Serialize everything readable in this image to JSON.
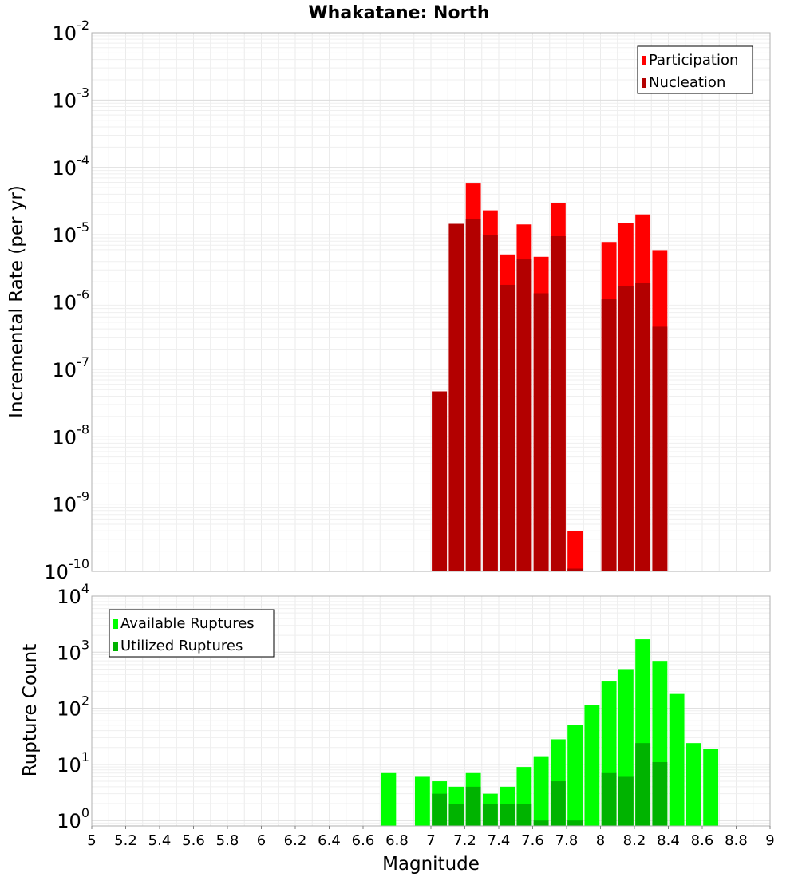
{
  "chart_data": [
    {
      "type": "bar",
      "title": "Whakatane: North",
      "xlabel": "",
      "ylabel": "Incremental Rate (per yr)",
      "yscale": "log",
      "ylim": [
        1e-10,
        0.01
      ],
      "xlim": [
        5,
        9
      ],
      "bin_width": 0.1,
      "grid": true,
      "legend_position": "top-right",
      "x": [
        7.05,
        7.15,
        7.25,
        7.35,
        7.45,
        7.55,
        7.65,
        7.75,
        7.85,
        8.05,
        8.15,
        8.25,
        8.35
      ],
      "series": [
        {
          "name": "Participation",
          "color": "#ff0000",
          "values": [
            4.7e-08,
            1.45e-05,
            5.9e-05,
            2.3e-05,
            5.1e-06,
            1.42e-05,
            4.7e-06,
            2.95e-05,
            4e-10,
            7.8e-06,
            1.48e-05,
            2e-05,
            5.9e-06
          ]
        },
        {
          "name": "Nucleation",
          "color": "#b30000",
          "values": [
            4.7e-08,
            1.45e-05,
            1.7e-05,
            1e-05,
            1.8e-06,
            4.3e-06,
            1.35e-06,
            9.5e-06,
            1.1e-10,
            1.1e-06,
            1.75e-06,
            1.9e-06,
            4.3e-07
          ]
        }
      ],
      "y_ticks": [
        {
          "base": "10",
          "exp": "-10"
        },
        {
          "base": "10",
          "exp": "-9"
        },
        {
          "base": "10",
          "exp": "-8"
        },
        {
          "base": "10",
          "exp": "-7"
        },
        {
          "base": "10",
          "exp": "-6"
        },
        {
          "base": "10",
          "exp": "-5"
        },
        {
          "base": "10",
          "exp": "-4"
        },
        {
          "base": "10",
          "exp": "-3"
        },
        {
          "base": "10",
          "exp": "-2"
        }
      ]
    },
    {
      "type": "bar",
      "title": "",
      "xlabel": "Magnitude",
      "ylabel": "Rupture Count",
      "yscale": "log",
      "ylim": [
        0.8,
        10000
      ],
      "xlim": [
        5,
        9
      ],
      "bin_width": 0.1,
      "grid": true,
      "legend_position": "top-left",
      "x": [
        6.75,
        6.95,
        7.05,
        7.15,
        7.25,
        7.35,
        7.45,
        7.55,
        7.65,
        7.75,
        7.85,
        7.95,
        8.05,
        8.15,
        8.25,
        8.35,
        8.45,
        8.55,
        8.65
      ],
      "series": [
        {
          "name": "Available Ruptures",
          "color": "#00ff00",
          "values": [
            7,
            6,
            5,
            4,
            7,
            3,
            4,
            9,
            14,
            28,
            50,
            115,
            300,
            500,
            1700,
            700,
            180,
            24,
            19
          ]
        },
        {
          "name": "Utilized Ruptures",
          "color": "#00b300",
          "values": [
            0,
            0,
            3,
            2,
            4,
            2,
            2,
            2,
            1,
            5,
            1,
            0,
            7,
            6,
            24,
            11,
            0,
            0,
            0
          ]
        }
      ],
      "y_ticks": [
        {
          "base": "10",
          "exp": "0"
        },
        {
          "base": "10",
          "exp": "1"
        },
        {
          "base": "10",
          "exp": "2"
        },
        {
          "base": "10",
          "exp": "3"
        },
        {
          "base": "10",
          "exp": "4"
        }
      ],
      "x_ticks": [
        "5",
        "5.2",
        "5.4",
        "5.6",
        "5.8",
        "6",
        "6.2",
        "6.4",
        "6.6",
        "6.8",
        "7",
        "7.2",
        "7.4",
        "7.6",
        "7.8",
        "8",
        "8.2",
        "8.4",
        "8.6",
        "8.8",
        "9"
      ]
    }
  ]
}
